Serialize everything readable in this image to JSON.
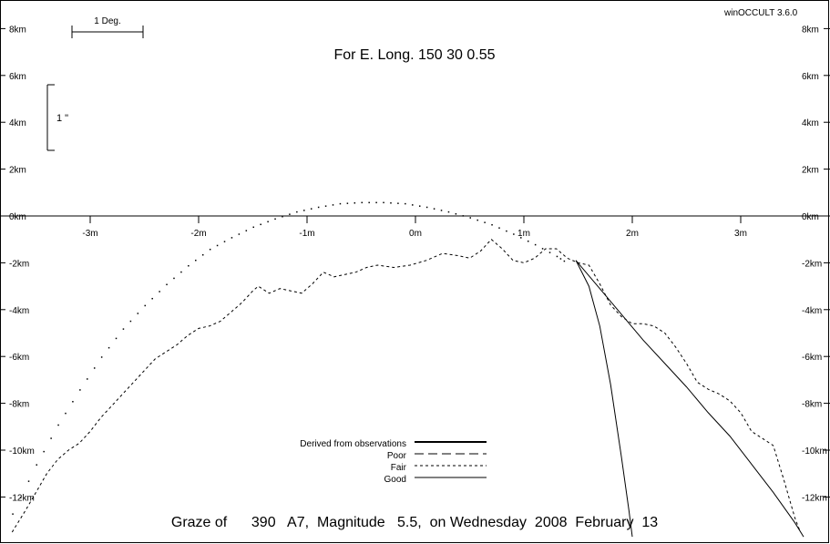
{
  "app": {
    "version_label": "winOCCULT 3.6.0"
  },
  "header": {
    "longitude_title": "For E. Long.  150 30  0.55"
  },
  "scale_bars": {
    "degree_label": "1 Deg.",
    "arcsec_label": "1 \""
  },
  "footer": {
    "graze_title": "Graze of      390   A7,  Magnitude   5.5,  on Wednesday  2008  February  13"
  },
  "legend": {
    "position": "bottom-center",
    "entries": [
      {
        "label": "Derived from observations",
        "style": "thick-solid"
      },
      {
        "label": "Poor",
        "style": "long-dash"
      },
      {
        "label": "Fair",
        "style": "short-dash"
      },
      {
        "label": "Good",
        "style": "thin-solid"
      }
    ]
  },
  "chart_data": {
    "type": "line",
    "title": "Graze of      390   A7,  Magnitude   5.5,  on Wednesday  2008  February  13",
    "subtitle": "For E. Long.  150 30  0.55",
    "xlabel": "",
    "ylabel": "",
    "x_unit": "minutes",
    "y_unit": "km",
    "xlim": [
      -3.8,
      3.8
    ],
    "ylim": [
      -13.7,
      9.5
    ],
    "grid": false,
    "x_ticks": [
      -3,
      -2,
      -1,
      0,
      1,
      2,
      3
    ],
    "x_tick_labels": [
      "-3m",
      "-2m",
      "-1m",
      "0m",
      "1m",
      "2m",
      "3m"
    ],
    "y_ticks": [
      8,
      6,
      4,
      2,
      0,
      -2,
      -4,
      -6,
      -8,
      -10,
      -12
    ],
    "y_tick_labels": [
      "8km",
      "6km",
      "4km",
      "2km",
      "0km",
      "-2km",
      "-4km",
      "-6km",
      "-8km",
      "-10km",
      "-12km"
    ],
    "series": [
      {
        "role": "lunar-profile",
        "style": "short-dash",
        "points": [
          [
            -3.72,
            -13.5
          ],
          [
            -3.6,
            -12.6
          ],
          [
            -3.5,
            -11.8
          ],
          [
            -3.4,
            -11.0
          ],
          [
            -3.3,
            -10.4
          ],
          [
            -3.2,
            -10.0
          ],
          [
            -3.1,
            -9.7
          ],
          [
            -3.0,
            -9.2
          ],
          [
            -2.9,
            -8.6
          ],
          [
            -2.8,
            -8.1
          ],
          [
            -2.7,
            -7.6
          ],
          [
            -2.6,
            -7.1
          ],
          [
            -2.5,
            -6.6
          ],
          [
            -2.4,
            -6.1
          ],
          [
            -2.3,
            -5.8
          ],
          [
            -2.2,
            -5.5
          ],
          [
            -2.1,
            -5.1
          ],
          [
            -2.0,
            -4.8
          ],
          [
            -1.9,
            -4.7
          ],
          [
            -1.8,
            -4.5
          ],
          [
            -1.7,
            -4.1
          ],
          [
            -1.6,
            -3.7
          ],
          [
            -1.5,
            -3.2
          ],
          [
            -1.45,
            -3.0
          ],
          [
            -1.35,
            -3.3
          ],
          [
            -1.25,
            -3.1
          ],
          [
            -1.15,
            -3.2
          ],
          [
            -1.05,
            -3.3
          ],
          [
            -0.95,
            -2.9
          ],
          [
            -0.85,
            -2.4
          ],
          [
            -0.75,
            -2.6
          ],
          [
            -0.65,
            -2.5
          ],
          [
            -0.55,
            -2.4
          ],
          [
            -0.45,
            -2.2
          ],
          [
            -0.35,
            -2.1
          ],
          [
            -0.2,
            -2.2
          ],
          [
            -0.05,
            -2.1
          ],
          [
            0.1,
            -1.9
          ],
          [
            0.25,
            -1.6
          ],
          [
            0.4,
            -1.7
          ],
          [
            0.5,
            -1.8
          ],
          [
            0.6,
            -1.5
          ],
          [
            0.7,
            -1.0
          ],
          [
            0.8,
            -1.4
          ],
          [
            0.9,
            -1.9
          ],
          [
            1.0,
            -2.0
          ],
          [
            1.1,
            -1.8
          ],
          [
            1.2,
            -1.4
          ],
          [
            1.3,
            -1.4
          ],
          [
            1.4,
            -1.8
          ],
          [
            1.5,
            -2.0
          ],
          [
            1.6,
            -2.1
          ],
          [
            1.7,
            -2.9
          ],
          [
            1.8,
            -3.8
          ],
          [
            1.9,
            -4.3
          ],
          [
            2.0,
            -4.6
          ],
          [
            2.1,
            -4.6
          ],
          [
            2.2,
            -4.7
          ],
          [
            2.3,
            -5.0
          ],
          [
            2.4,
            -5.6
          ],
          [
            2.5,
            -6.3
          ],
          [
            2.6,
            -7.1
          ],
          [
            2.7,
            -7.4
          ],
          [
            2.8,
            -7.6
          ],
          [
            2.9,
            -7.9
          ],
          [
            3.0,
            -8.4
          ],
          [
            3.1,
            -9.2
          ],
          [
            3.2,
            -9.5
          ],
          [
            3.3,
            -9.8
          ],
          [
            3.4,
            -11.3
          ],
          [
            3.5,
            -12.9
          ],
          [
            3.55,
            -13.5
          ]
        ]
      },
      {
        "role": "mean-limb",
        "style": "dots",
        "points": [
          [
            -3.72,
            -12.7
          ],
          [
            -3.5,
            -10.6
          ],
          [
            -3.3,
            -8.9
          ],
          [
            -3.1,
            -7.4
          ],
          [
            -2.9,
            -6.0
          ],
          [
            -2.7,
            -4.8
          ],
          [
            -2.5,
            -3.8
          ],
          [
            -2.3,
            -2.9
          ],
          [
            -2.1,
            -2.1
          ],
          [
            -1.9,
            -1.4
          ],
          [
            -1.7,
            -0.9
          ],
          [
            -1.5,
            -0.45
          ],
          [
            -1.3,
            -0.1
          ],
          [
            -1.1,
            0.2
          ],
          [
            -0.9,
            0.4
          ],
          [
            -0.7,
            0.55
          ],
          [
            -0.5,
            0.6
          ],
          [
            -0.3,
            0.6
          ],
          [
            -0.1,
            0.55
          ],
          [
            0.1,
            0.4
          ],
          [
            0.3,
            0.2
          ],
          [
            0.5,
            -0.05
          ],
          [
            0.7,
            -0.35
          ],
          [
            0.9,
            -0.75
          ],
          [
            1.1,
            -1.2
          ],
          [
            1.3,
            -1.7
          ],
          [
            1.4,
            -2.0
          ]
        ]
      },
      {
        "role": "good-limit",
        "style": "thin-solid",
        "points": [
          [
            1.48,
            -1.9
          ],
          [
            1.7,
            -3.1
          ],
          [
            1.9,
            -4.2
          ],
          [
            2.1,
            -5.3
          ],
          [
            2.3,
            -6.3
          ],
          [
            2.5,
            -7.3
          ],
          [
            2.7,
            -8.4
          ],
          [
            2.9,
            -9.4
          ],
          [
            3.1,
            -10.6
          ],
          [
            3.3,
            -11.8
          ],
          [
            3.5,
            -13.1
          ],
          [
            3.58,
            -13.7
          ]
        ]
      },
      {
        "role": "fair-limit",
        "style": "thin-solid",
        "points": [
          [
            1.48,
            -1.9
          ],
          [
            1.6,
            -3.0
          ],
          [
            1.7,
            -4.7
          ],
          [
            1.8,
            -7.2
          ],
          [
            1.9,
            -10.3
          ],
          [
            1.97,
            -12.6
          ],
          [
            2.0,
            -13.7
          ]
        ]
      }
    ]
  }
}
